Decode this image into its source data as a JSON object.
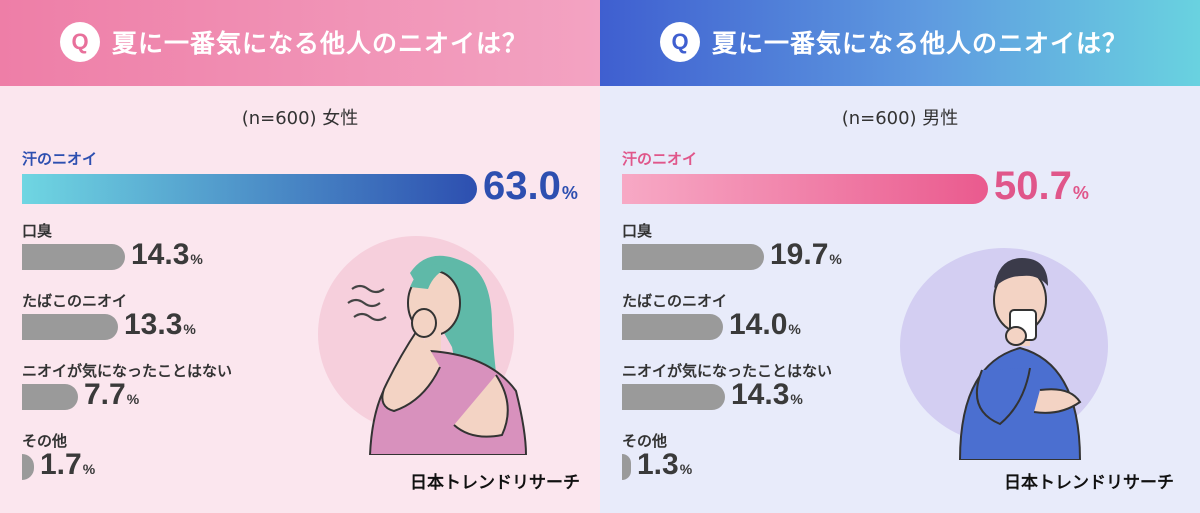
{
  "brand": "日本トレンドリサーチ",
  "colors": {
    "bar_gray": "#9a9a9a",
    "female_top_gradient": [
      "#6fd6e2",
      "#2d4fb0"
    ],
    "male_top_gradient": [
      "#f7a9c5",
      "#ea5a8e"
    ]
  },
  "chart_data": [
    {
      "type": "bar",
      "orientation": "horizontal",
      "title": "夏に一番気になる他人のニオイは？",
      "subtitle": "(n=600) 女性",
      "unit": "%",
      "xlim": [
        0,
        63.0
      ],
      "categories": [
        "汗のニオイ",
        "口臭",
        "たばこのニオイ",
        "ニオイが気になったことはない",
        "その他"
      ],
      "values": [
        63.0,
        14.3,
        13.3,
        7.7,
        1.7
      ],
      "value_labels": [
        "63.0",
        "14.3",
        "13.3",
        "7.7",
        "1.7"
      ]
    },
    {
      "type": "bar",
      "orientation": "horizontal",
      "title": "夏に一番気になる他人のニオイは？",
      "subtitle": "(n=600) 男性",
      "unit": "%",
      "xlim": [
        0,
        63.0
      ],
      "categories": [
        "汗のニオイ",
        "口臭",
        "たばこのニオイ",
        "ニオイが気になったことはない",
        "その他"
      ],
      "values": [
        50.7,
        19.7,
        14.0,
        14.3,
        1.3
      ],
      "value_labels": [
        "50.7",
        "19.7",
        "14.0",
        "14.3",
        "1.3"
      ]
    }
  ],
  "illustrations": [
    "woman-pinching-nose-icon",
    "man-covering-mouth-icon"
  ],
  "q_badge": "Q"
}
